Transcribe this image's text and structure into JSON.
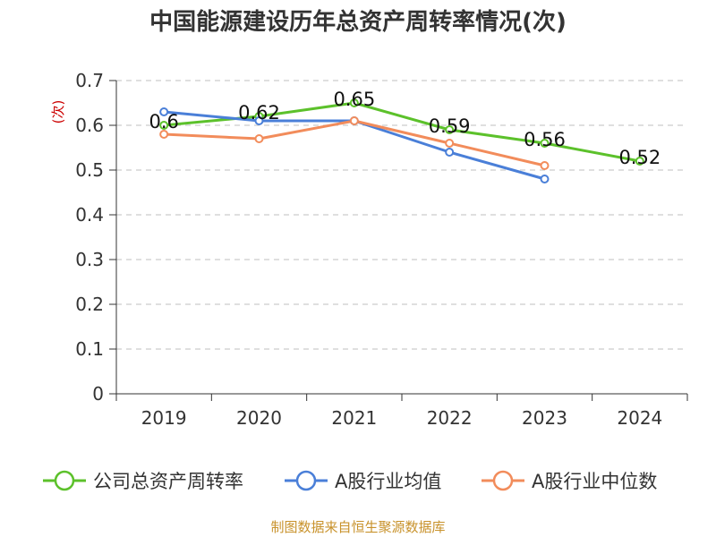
{
  "title": "中国能源建设历年总资产周转率情况(次)",
  "source": "制图数据来自恒生聚源数据库",
  "colors": {
    "title": "#333333",
    "source": "#c8922b",
    "ylabel": "#cc0000",
    "grid": "#cccccc",
    "axis": "#333333"
  },
  "chart_data": {
    "type": "line",
    "ylabel": "(次)",
    "ylim": [
      0,
      0.7
    ],
    "yticks": [
      "0",
      "0.1",
      "0.2",
      "0.3",
      "0.4",
      "0.5",
      "0.6",
      "0.7"
    ],
    "categories": [
      "2019",
      "2020",
      "2021",
      "2022",
      "2023",
      "2024"
    ],
    "grid": true,
    "legend_position": "bottom",
    "series": [
      {
        "name": "公司总资产周转率",
        "color": "#5cc12b",
        "values": [
          0.6,
          0.62,
          0.65,
          0.59,
          0.56,
          0.52
        ],
        "labels": [
          "0.6",
          "0.62",
          "0.65",
          "0.59",
          "0.56",
          "0.52"
        ]
      },
      {
        "name": "A股行业均值",
        "color": "#4a7fd8",
        "values": [
          0.63,
          0.61,
          0.61,
          0.54,
          0.48,
          null
        ]
      },
      {
        "name": "A股行业中位数",
        "color": "#f28c5b",
        "values": [
          0.58,
          0.57,
          0.61,
          0.56,
          0.51,
          null
        ]
      }
    ]
  }
}
